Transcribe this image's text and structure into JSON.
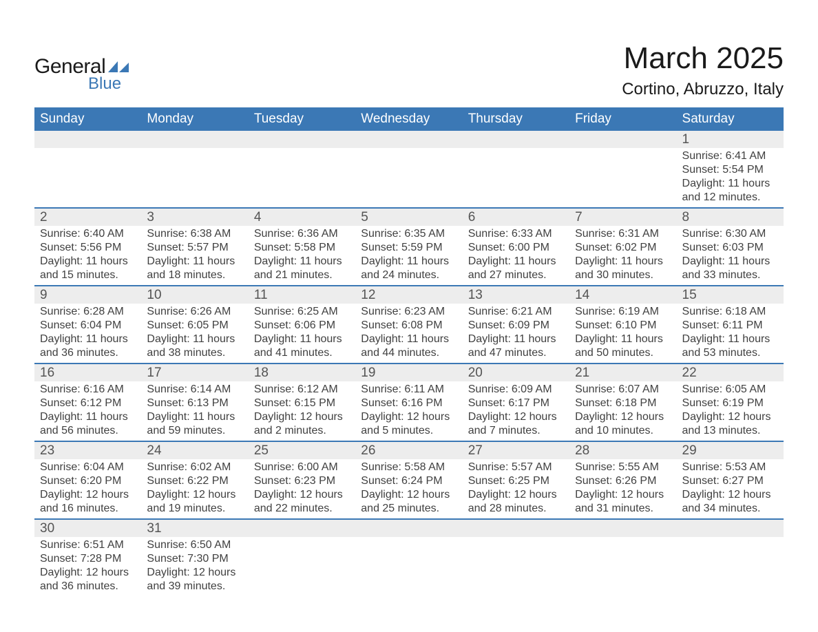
{
  "logo": {
    "text_general": "General",
    "text_blue": "Blue",
    "flag_color": "#3b78b5"
  },
  "title": {
    "month": "March 2025",
    "location": "Cortino, Abruzzo, Italy"
  },
  "colors": {
    "header_bg": "#3b78b5",
    "header_text": "#ffffff",
    "daynum_bg": "#ededed",
    "daynum_text": "#545454",
    "body_text": "#404040",
    "rule": "#3b78b5",
    "page_bg": "#ffffff"
  },
  "day_headers": [
    "Sunday",
    "Monday",
    "Tuesday",
    "Wednesday",
    "Thursday",
    "Friday",
    "Saturday"
  ],
  "weeks": [
    [
      null,
      null,
      null,
      null,
      null,
      null,
      {
        "n": "1",
        "sr": "6:41 AM",
        "ss": "5:54 PM",
        "dl": "11 hours and 12 minutes."
      }
    ],
    [
      {
        "n": "2",
        "sr": "6:40 AM",
        "ss": "5:56 PM",
        "dl": "11 hours and 15 minutes."
      },
      {
        "n": "3",
        "sr": "6:38 AM",
        "ss": "5:57 PM",
        "dl": "11 hours and 18 minutes."
      },
      {
        "n": "4",
        "sr": "6:36 AM",
        "ss": "5:58 PM",
        "dl": "11 hours and 21 minutes."
      },
      {
        "n": "5",
        "sr": "6:35 AM",
        "ss": "5:59 PM",
        "dl": "11 hours and 24 minutes."
      },
      {
        "n": "6",
        "sr": "6:33 AM",
        "ss": "6:00 PM",
        "dl": "11 hours and 27 minutes."
      },
      {
        "n": "7",
        "sr": "6:31 AM",
        "ss": "6:02 PM",
        "dl": "11 hours and 30 minutes."
      },
      {
        "n": "8",
        "sr": "6:30 AM",
        "ss": "6:03 PM",
        "dl": "11 hours and 33 minutes."
      }
    ],
    [
      {
        "n": "9",
        "sr": "6:28 AM",
        "ss": "6:04 PM",
        "dl": "11 hours and 36 minutes."
      },
      {
        "n": "10",
        "sr": "6:26 AM",
        "ss": "6:05 PM",
        "dl": "11 hours and 38 minutes."
      },
      {
        "n": "11",
        "sr": "6:25 AM",
        "ss": "6:06 PM",
        "dl": "11 hours and 41 minutes."
      },
      {
        "n": "12",
        "sr": "6:23 AM",
        "ss": "6:08 PM",
        "dl": "11 hours and 44 minutes."
      },
      {
        "n": "13",
        "sr": "6:21 AM",
        "ss": "6:09 PM",
        "dl": "11 hours and 47 minutes."
      },
      {
        "n": "14",
        "sr": "6:19 AM",
        "ss": "6:10 PM",
        "dl": "11 hours and 50 minutes."
      },
      {
        "n": "15",
        "sr": "6:18 AM",
        "ss": "6:11 PM",
        "dl": "11 hours and 53 minutes."
      }
    ],
    [
      {
        "n": "16",
        "sr": "6:16 AM",
        "ss": "6:12 PM",
        "dl": "11 hours and 56 minutes."
      },
      {
        "n": "17",
        "sr": "6:14 AM",
        "ss": "6:13 PM",
        "dl": "11 hours and 59 minutes."
      },
      {
        "n": "18",
        "sr": "6:12 AM",
        "ss": "6:15 PM",
        "dl": "12 hours and 2 minutes."
      },
      {
        "n": "19",
        "sr": "6:11 AM",
        "ss": "6:16 PM",
        "dl": "12 hours and 5 minutes."
      },
      {
        "n": "20",
        "sr": "6:09 AM",
        "ss": "6:17 PM",
        "dl": "12 hours and 7 minutes."
      },
      {
        "n": "21",
        "sr": "6:07 AM",
        "ss": "6:18 PM",
        "dl": "12 hours and 10 minutes."
      },
      {
        "n": "22",
        "sr": "6:05 AM",
        "ss": "6:19 PM",
        "dl": "12 hours and 13 minutes."
      }
    ],
    [
      {
        "n": "23",
        "sr": "6:04 AM",
        "ss": "6:20 PM",
        "dl": "12 hours and 16 minutes."
      },
      {
        "n": "24",
        "sr": "6:02 AM",
        "ss": "6:22 PM",
        "dl": "12 hours and 19 minutes."
      },
      {
        "n": "25",
        "sr": "6:00 AM",
        "ss": "6:23 PM",
        "dl": "12 hours and 22 minutes."
      },
      {
        "n": "26",
        "sr": "5:58 AM",
        "ss": "6:24 PM",
        "dl": "12 hours and 25 minutes."
      },
      {
        "n": "27",
        "sr": "5:57 AM",
        "ss": "6:25 PM",
        "dl": "12 hours and 28 minutes."
      },
      {
        "n": "28",
        "sr": "5:55 AM",
        "ss": "6:26 PM",
        "dl": "12 hours and 31 minutes."
      },
      {
        "n": "29",
        "sr": "5:53 AM",
        "ss": "6:27 PM",
        "dl": "12 hours and 34 minutes."
      }
    ],
    [
      {
        "n": "30",
        "sr": "6:51 AM",
        "ss": "7:28 PM",
        "dl": "12 hours and 36 minutes."
      },
      {
        "n": "31",
        "sr": "6:50 AM",
        "ss": "7:30 PM",
        "dl": "12 hours and 39 minutes."
      },
      null,
      null,
      null,
      null,
      null
    ]
  ],
  "labels": {
    "sunrise": "Sunrise: ",
    "sunset": "Sunset: ",
    "daylight": "Daylight: "
  }
}
